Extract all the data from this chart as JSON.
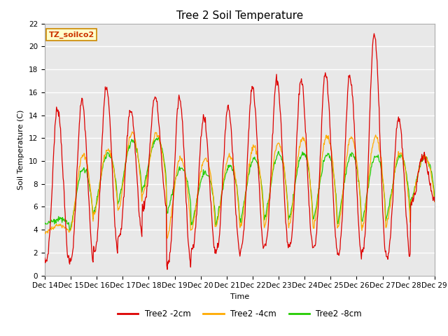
{
  "title": "Tree 2 Soil Temperature",
  "xlabel": "Time",
  "ylabel": "Soil Temperature (C)",
  "ylim": [
    0,
    22
  ],
  "yticks": [
    0,
    2,
    4,
    6,
    8,
    10,
    12,
    14,
    16,
    18,
    20,
    22
  ],
  "x_tick_labels": [
    "Dec 14",
    "Dec 15",
    "Dec 16",
    "Dec 17",
    "Dec 18",
    "Dec 19",
    "Dec 20",
    "Dec 21",
    "Dec 22",
    "Dec 23",
    "Dec 24",
    "Dec 25",
    "Dec 26",
    "Dec 27",
    "Dec 28",
    "Dec 29"
  ],
  "line_colors": [
    "#dd0000",
    "#ffaa00",
    "#22cc00"
  ],
  "line_labels": [
    "Tree2 -2cm",
    "Tree2 -4cm",
    "Tree2 -8cm"
  ],
  "legend_label": "TZ_soilco2",
  "background_color": "#ffffff",
  "plot_bg_color": "#e8e8e8",
  "grid_color": "#ffffff",
  "title_fontsize": 11,
  "axis_fontsize": 8,
  "tick_fontsize": 7.5,
  "figwidth": 6.4,
  "figheight": 4.8,
  "dpi": 100,
  "red_day_peaks": [
    14.6,
    15.2,
    16.4,
    14.5,
    15.6,
    15.5,
    13.8,
    14.7,
    16.4,
    17.2,
    17.1,
    17.7,
    17.5,
    21.0,
    13.8,
    10.5
  ],
  "red_day_mins": [
    1.2,
    1.1,
    2.1,
    3.5,
    6.0,
    0.9,
    2.2,
    2.2,
    2.3,
    2.6,
    2.5,
    2.4,
    1.7,
    2.1,
    1.6,
    6.5
  ],
  "orange_day_peaks": [
    4.4,
    10.5,
    11.0,
    12.4,
    12.3,
    10.2,
    10.3,
    10.4,
    11.2,
    11.5,
    12.0,
    12.2,
    12.1,
    12.1,
    10.7,
    10.5
  ],
  "orange_day_mins": [
    3.8,
    3.7,
    5.4,
    5.7,
    7.0,
    3.3,
    4.0,
    4.2,
    4.2,
    4.3,
    4.2,
    4.1,
    4.0,
    4.0,
    4.5,
    6.3
  ],
  "green_day_peaks": [
    4.9,
    9.3,
    10.7,
    11.8,
    12.0,
    9.4,
    9.0,
    9.6,
    10.2,
    10.6,
    10.7,
    10.6,
    10.6,
    10.5,
    10.4,
    10.3
  ],
  "green_day_mins": [
    4.5,
    3.8,
    5.5,
    6.3,
    7.5,
    5.5,
    4.5,
    4.5,
    4.7,
    4.8,
    4.8,
    4.7,
    4.6,
    4.6,
    4.9,
    6.5
  ]
}
